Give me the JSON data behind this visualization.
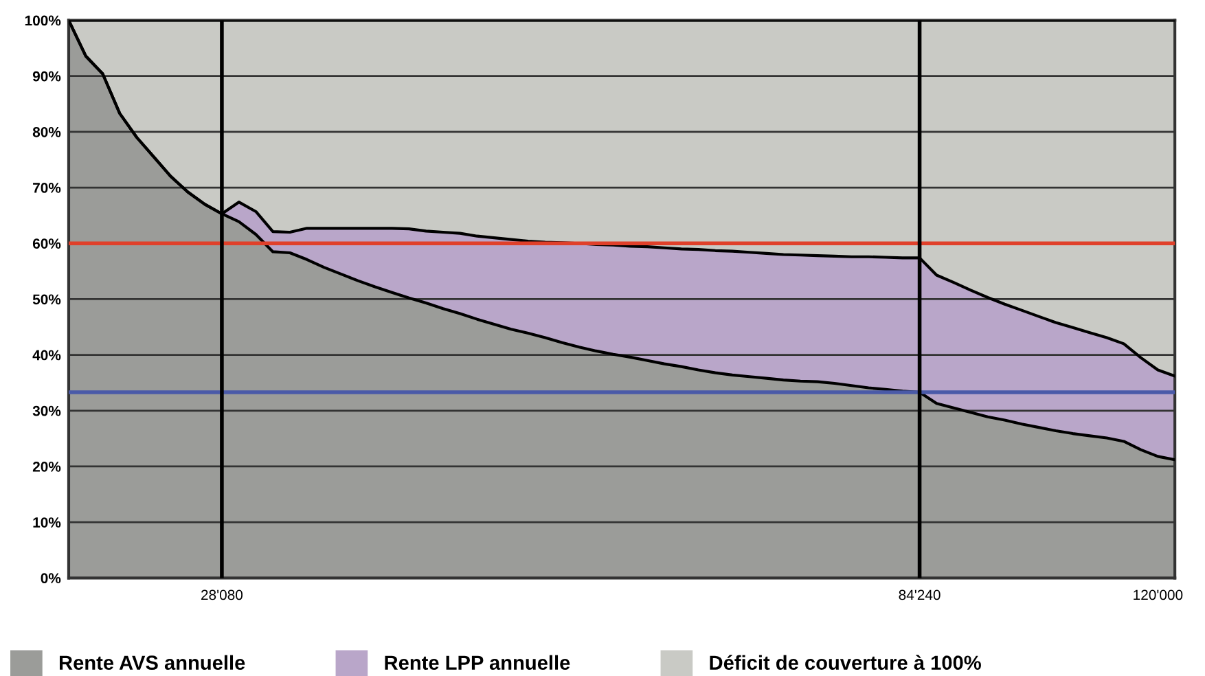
{
  "chart_data": {
    "type": "area",
    "stacked": true,
    "categories": [
      null,
      null,
      null,
      null,
      null,
      null,
      null,
      null,
      null,
      "28'080",
      null,
      null,
      null,
      null,
      null,
      null,
      null,
      null,
      null,
      null,
      null,
      null,
      null,
      null,
      null,
      null,
      null,
      null,
      null,
      null,
      null,
      null,
      null,
      null,
      null,
      null,
      null,
      null,
      null,
      null,
      null,
      null,
      null,
      null,
      null,
      null,
      null,
      null,
      null,
      null,
      "84'240",
      null,
      null,
      null,
      null,
      null,
      null,
      null,
      null,
      null,
      null,
      null,
      null,
      null,
      "120'000",
      null
    ],
    "series": [
      {
        "name": "Rente AVS annuelle",
        "color": "#9b9c99",
        "values": [
          100,
          93.6,
          90.4,
          83.3,
          79.0,
          75.5,
          72.0,
          69.2,
          67.0,
          65.3,
          63.9,
          61.6,
          58.5,
          58.3,
          57.1,
          55.7,
          54.5,
          53.3,
          52.2,
          51.2,
          50.2,
          49.3,
          48.3,
          47.4,
          46.4,
          45.5,
          44.6,
          43.9,
          43.1,
          42.2,
          41.4,
          40.7,
          40.1,
          39.6,
          39.0,
          38.4,
          37.9,
          37.3,
          36.8,
          36.4,
          36.1,
          35.8,
          35.5,
          35.3,
          35.2,
          34.9,
          34.5,
          34.1,
          33.8,
          33.5,
          33.3,
          31.3,
          30.5,
          29.7,
          28.9,
          28.3,
          27.6,
          27.0,
          26.4,
          25.9,
          25.5,
          25.1,
          24.5,
          23.0,
          21.8,
          21.2
        ]
      },
      {
        "name": "Rente LPP annuelle",
        "color": "#b9a6c9",
        "values": [
          0,
          0,
          0,
          0,
          0,
          0,
          0,
          0,
          0,
          0,
          3.5,
          4.1,
          3.6,
          3.7,
          5.6,
          7.0,
          8.2,
          9.4,
          10.5,
          11.5,
          12.4,
          12.9,
          13.7,
          14.4,
          14.9,
          15.5,
          16.1,
          16.5,
          17.1,
          17.9,
          18.6,
          19.1,
          19.6,
          19.9,
          20.4,
          20.8,
          21.1,
          21.6,
          21.9,
          22.2,
          22.3,
          22.4,
          22.5,
          22.6,
          22.6,
          22.8,
          23.1,
          23.5,
          23.7,
          23.9,
          24.1,
          23.0,
          22.5,
          21.9,
          21.4,
          20.8,
          20.4,
          19.9,
          19.4,
          19.0,
          18.5,
          18.0,
          17.5,
          16.5,
          15.5,
          15.0
        ]
      },
      {
        "name": "Déficit de couverture à 100%",
        "color": "#c9cac5",
        "values": [
          0,
          6.4,
          9.6,
          16.7,
          21.0,
          24.5,
          28.0,
          30.8,
          33.0,
          34.7,
          32.6,
          34.3,
          37.9,
          38.0,
          37.3,
          37.3,
          37.3,
          37.3,
          37.3,
          37.3,
          37.4,
          37.8,
          38.0,
          38.2,
          38.7,
          39.0,
          39.3,
          39.6,
          39.8,
          39.9,
          40.0,
          40.2,
          40.3,
          40.5,
          40.6,
          40.8,
          41.0,
          41.1,
          41.3,
          41.4,
          41.6,
          41.8,
          42.0,
          42.1,
          42.2,
          42.3,
          42.4,
          42.4,
          42.5,
          42.6,
          42.6,
          45.7,
          47.0,
          48.4,
          49.7,
          50.9,
          52.0,
          53.1,
          54.2,
          55.1,
          56.0,
          56.9,
          58.0,
          60.5,
          62.7,
          63.8
        ]
      }
    ],
    "ylim": [
      0,
      100
    ],
    "yticks": [
      {
        "value": 0,
        "label": "0%"
      },
      {
        "value": 10,
        "label": "10%"
      },
      {
        "value": 20,
        "label": "20%"
      },
      {
        "value": 30,
        "label": "30%"
      },
      {
        "value": 40,
        "label": "40%"
      },
      {
        "value": 50,
        "label": "50%"
      },
      {
        "value": 60,
        "label": "60%"
      },
      {
        "value": 70,
        "label": "70%"
      },
      {
        "value": 80,
        "label": "80%"
      },
      {
        "value": 90,
        "label": "90%"
      },
      {
        "value": 100,
        "label": "100%"
      }
    ],
    "ref_lines": [
      {
        "axis": "y",
        "value": 60,
        "color": "#e0402a"
      },
      {
        "axis": "y",
        "value": 33.3,
        "color": "#4a5aa8"
      },
      {
        "axis": "x",
        "value": "28'080",
        "color": "#000000"
      },
      {
        "axis": "x",
        "value": "84'240",
        "color": "#000000"
      }
    ],
    "grid": "y",
    "legend": "bottom"
  }
}
